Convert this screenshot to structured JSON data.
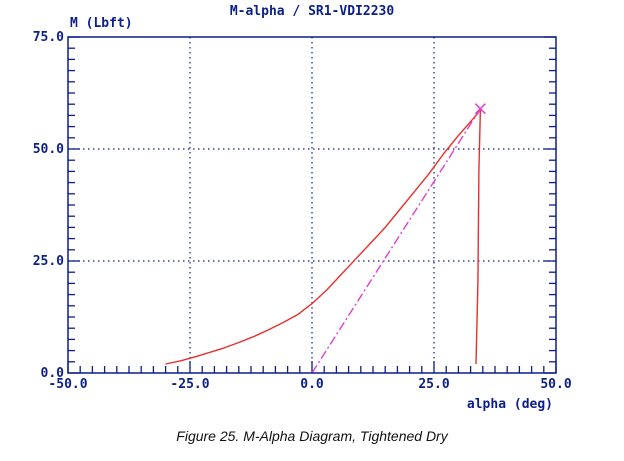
{
  "chart_data": {
    "type": "line",
    "title": "M-alpha / SR1-VDI2230",
    "xlabel": "alpha (deg)",
    "ylabel": "M (Lbft)",
    "xlim": [
      -50,
      50
    ],
    "ylim": [
      0,
      75
    ],
    "xticks": [
      -50,
      -25,
      0,
      25,
      50
    ],
    "xtick_labels": [
      "-50.0",
      "-25.0",
      "0.0",
      "25.0",
      "50.0"
    ],
    "yticks": [
      0,
      25,
      50,
      75
    ],
    "ytick_labels": [
      "0.0",
      "25.0",
      "50.0",
      "75.0"
    ],
    "grid": true,
    "series": [
      {
        "color": "#e8302a",
        "style": "solid",
        "x": [
          -30,
          -27,
          -24,
          -21,
          -18,
          -15,
          -12,
          -9,
          -6,
          -3,
          0,
          3,
          6,
          9,
          12,
          15,
          18,
          21,
          24,
          27,
          30,
          32,
          34,
          34.5,
          34.2,
          34.0,
          33.6
        ],
        "y": [
          2.0,
          2.7,
          3.6,
          4.6,
          5.6,
          6.8,
          8.1,
          9.6,
          11.2,
          13.0,
          15.5,
          18.5,
          22.0,
          25.5,
          29.0,
          32.5,
          36.5,
          40.5,
          44.5,
          49.0,
          53.0,
          55.5,
          58.0,
          59.0,
          45.0,
          20.0,
          2.0
        ]
      },
      {
        "color": "#e040d0",
        "style": "dash-dot",
        "x": [
          0,
          34.5
        ],
        "y": [
          0,
          59.0
        ]
      }
    ],
    "annotations": [
      {
        "marker": "x",
        "x": 34.5,
        "y": 59.0,
        "color": "#e040d0"
      }
    ]
  },
  "caption": "Figure 25. M-Alpha Diagram, Tightened Dry",
  "colors": {
    "axis": "#0b1f8a",
    "grid": "#0b1f8a",
    "curve": "#e8302a",
    "secant": "#e040d0"
  }
}
